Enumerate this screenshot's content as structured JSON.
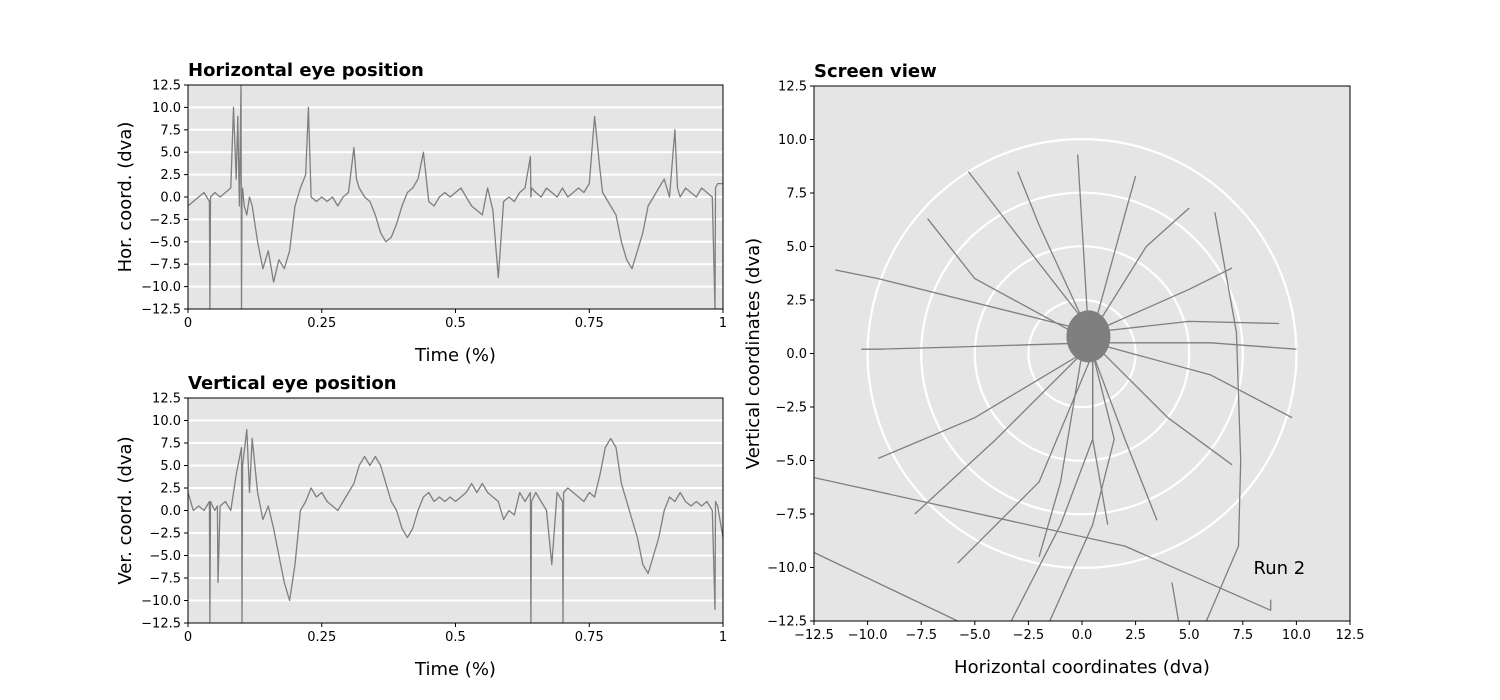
{
  "chart_data": [
    {
      "type": "line",
      "title": "Horizontal eye position",
      "xlabel": "Time (%)",
      "ylabel": "Hor. coord. (dva)",
      "xlim": [
        0,
        1
      ],
      "ylim": [
        -12.5,
        12.5
      ],
      "xticks": [
        "0",
        "0.25",
        "0.5",
        "0.75",
        "1"
      ],
      "yticks": [
        "12.5",
        "10.0",
        "7.5",
        "5.0",
        "2.5",
        "0.0",
        "−2.5",
        "−5.0",
        "−7.5",
        "−10.0",
        "−12.5"
      ],
      "grid": "horizontal",
      "color": "#7f7f7f",
      "background": "#e5e5e5",
      "series": [
        {
          "x": [
            0,
            0.01,
            0.02,
            0.03,
            0.035,
            0.04,
            0.041,
            0.042,
            0.05,
            0.06,
            0.07,
            0.08,
            0.085,
            0.09,
            0.093,
            0.096,
            0.099,
            0.1,
            0.101,
            0.102,
            0.105,
            0.11,
            0.115,
            0.12,
            0.13,
            0.14,
            0.15,
            0.16,
            0.17,
            0.18,
            0.19,
            0.2,
            0.21,
            0.22,
            0.225,
            0.23,
            0.24,
            0.25,
            0.26,
            0.27,
            0.28,
            0.29,
            0.3,
            0.31,
            0.315,
            0.32,
            0.33,
            0.34,
            0.35,
            0.36,
            0.37,
            0.38,
            0.39,
            0.4,
            0.41,
            0.42,
            0.43,
            0.44,
            0.45,
            0.46,
            0.47,
            0.48,
            0.49,
            0.5,
            0.51,
            0.52,
            0.53,
            0.54,
            0.55,
            0.56,
            0.57,
            0.58,
            0.59,
            0.6,
            0.61,
            0.62,
            0.63,
            0.64,
            0.641,
            0.642,
            0.65,
            0.66,
            0.67,
            0.68,
            0.69,
            0.7,
            0.71,
            0.72,
            0.73,
            0.74,
            0.75,
            0.76,
            0.77,
            0.775,
            0.78,
            0.79,
            0.8,
            0.81,
            0.82,
            0.83,
            0.84,
            0.85,
            0.86,
            0.87,
            0.88,
            0.89,
            0.9,
            0.91,
            0.915,
            0.92,
            0.93,
            0.94,
            0.95,
            0.96,
            0.97,
            0.98,
            0.985,
            0.986,
            0.99,
            1.0
          ],
          "y": [
            -1.0,
            -0.5,
            0.0,
            0.5,
            0.0,
            -0.5,
            -12.5,
            0.0,
            0.5,
            0.0,
            0.5,
            1.0,
            10.0,
            2.0,
            9.0,
            -1.0,
            12.5,
            -12.5,
            0.0,
            1.0,
            -1.0,
            -2.0,
            0.0,
            -1.0,
            -5.0,
            -8.0,
            -6.0,
            -9.5,
            -7.0,
            -8.0,
            -6.0,
            -1.0,
            1.0,
            2.5,
            10.0,
            0.0,
            -0.5,
            0.0,
            -0.5,
            0.0,
            -1.0,
            0.0,
            0.5,
            5.5,
            2.0,
            1.0,
            0.0,
            -0.5,
            -2.0,
            -4.0,
            -5.0,
            -4.5,
            -3.0,
            -1.0,
            0.5,
            1.0,
            2.0,
            5.0,
            -0.5,
            -1.0,
            0.0,
            0.5,
            0.0,
            0.5,
            1.0,
            0.0,
            -1.0,
            -1.5,
            -2.0,
            1.0,
            -1.5,
            -9.0,
            -0.5,
            0.0,
            -0.5,
            0.5,
            1.0,
            4.5,
            0.0,
            1.0,
            0.5,
            0.0,
            1.0,
            0.5,
            0.0,
            1.0,
            0.0,
            0.5,
            1.0,
            0.5,
            1.5,
            9.0,
            3.0,
            0.5,
            0.0,
            -1.0,
            -2.0,
            -5.0,
            -7.0,
            -8.0,
            -6.0,
            -4.0,
            -1.0,
            0.0,
            1.0,
            2.0,
            0.0,
            7.5,
            1.0,
            0.0,
            1.0,
            0.5,
            0.0,
            1.0,
            0.5,
            0.0,
            -12.5,
            1.0,
            1.5,
            1.5
          ]
        }
      ]
    },
    {
      "type": "line",
      "title": "Vertical eye position",
      "xlabel": "Time (%)",
      "ylabel": "Ver. coord. (dva)",
      "xlim": [
        0,
        1
      ],
      "ylim": [
        -12.5,
        12.5
      ],
      "xticks": [
        "0",
        "0.25",
        "0.5",
        "0.75",
        "1"
      ],
      "yticks": [
        "12.5",
        "10.0",
        "7.5",
        "5.0",
        "2.5",
        "0.0",
        "−2.5",
        "−5.0",
        "−7.5",
        "−10.0",
        "−12.5"
      ],
      "grid": "horizontal",
      "color": "#7f7f7f",
      "background": "#e5e5e5",
      "series": [
        {
          "x": [
            0,
            0.01,
            0.02,
            0.03,
            0.04,
            0.041,
            0.042,
            0.05,
            0.055,
            0.056,
            0.06,
            0.07,
            0.08,
            0.09,
            0.1,
            0.101,
            0.102,
            0.11,
            0.115,
            0.12,
            0.13,
            0.14,
            0.15,
            0.16,
            0.17,
            0.18,
            0.19,
            0.2,
            0.21,
            0.22,
            0.23,
            0.24,
            0.25,
            0.26,
            0.27,
            0.28,
            0.29,
            0.3,
            0.31,
            0.32,
            0.33,
            0.34,
            0.35,
            0.36,
            0.37,
            0.38,
            0.39,
            0.4,
            0.41,
            0.42,
            0.43,
            0.44,
            0.45,
            0.46,
            0.47,
            0.48,
            0.49,
            0.5,
            0.51,
            0.52,
            0.53,
            0.54,
            0.55,
            0.56,
            0.57,
            0.58,
            0.59,
            0.6,
            0.61,
            0.62,
            0.63,
            0.64,
            0.641,
            0.642,
            0.65,
            0.66,
            0.67,
            0.68,
            0.69,
            0.7,
            0.701,
            0.702,
            0.71,
            0.72,
            0.73,
            0.74,
            0.75,
            0.76,
            0.77,
            0.78,
            0.79,
            0.8,
            0.81,
            0.82,
            0.83,
            0.84,
            0.85,
            0.86,
            0.87,
            0.88,
            0.89,
            0.9,
            0.91,
            0.92,
            0.93,
            0.94,
            0.95,
            0.96,
            0.97,
            0.98,
            0.985,
            0.986,
            0.99,
            1.0
          ],
          "y": [
            2.0,
            0.0,
            0.5,
            0.0,
            1.0,
            -12.5,
            1.0,
            0.0,
            0.5,
            -8.0,
            0.5,
            1.0,
            0.0,
            4.0,
            7.0,
            -12.5,
            5.0,
            9.0,
            2.0,
            8.0,
            2.0,
            -1.0,
            0.5,
            -2.0,
            -5.0,
            -8.0,
            -10.0,
            -6.0,
            0.0,
            1.0,
            2.5,
            1.5,
            2.0,
            1.0,
            0.5,
            0.0,
            1.0,
            2.0,
            3.0,
            5.0,
            6.0,
            5.0,
            6.0,
            5.0,
            3.0,
            1.0,
            0.0,
            -2.0,
            -3.0,
            -2.0,
            0.0,
            1.5,
            2.0,
            1.0,
            1.5,
            1.0,
            1.5,
            1.0,
            1.5,
            2.0,
            3.0,
            2.0,
            3.0,
            2.0,
            1.5,
            1.0,
            -1.0,
            0.0,
            -0.5,
            2.0,
            1.0,
            2.0,
            -12.5,
            1.0,
            2.0,
            1.0,
            0.0,
            -6.0,
            2.0,
            1.0,
            -12.5,
            2.0,
            2.5,
            2.0,
            1.5,
            1.0,
            2.0,
            1.5,
            4.0,
            7.0,
            8.0,
            7.0,
            3.0,
            1.0,
            -1.0,
            -3.0,
            -6.0,
            -7.0,
            -5.0,
            -3.0,
            0.0,
            1.5,
            1.0,
            2.0,
            1.0,
            0.5,
            1.0,
            0.5,
            1.0,
            0.0,
            -11.0,
            1.0,
            0.5,
            -3.0
          ]
        }
      ]
    },
    {
      "type": "line",
      "title": "Screen view",
      "xlabel": "Horizontal coordinates (dva)",
      "ylabel": "Vertical coordinates (dva)",
      "xlim": [
        -12.5,
        12.5
      ],
      "ylim": [
        -12.5,
        12.5
      ],
      "xticks": [
        "−12.5",
        "−10.0",
        "−7.5",
        "−5.0",
        "−2.5",
        "0.0",
        "2.5",
        "5.0",
        "7.5",
        "10.0",
        "12.5"
      ],
      "yticks": [
        "12.5",
        "10.0",
        "7.5",
        "5.0",
        "2.5",
        "0.0",
        "−2.5",
        "−5.0",
        "−7.5",
        "−10.0",
        "−12.5"
      ],
      "reference_circles_radius": [
        2.5,
        5.0,
        7.5,
        10.0
      ],
      "annotation": "Run 2",
      "color": "#7f7f7f",
      "background": "#e5e5e5",
      "trajectories": [
        {
          "points": [
            [
              0.5,
              1.0
            ],
            [
              -9.5,
              3.5
            ],
            [
              -11.5,
              3.9
            ]
          ]
        },
        {
          "points": [
            [
              0.5,
              0.5
            ],
            [
              -6.0,
              0.3
            ],
            [
              -9.5,
              0.2
            ],
            [
              -10.3,
              0.2
            ]
          ]
        },
        {
          "points": [
            [
              0.0,
              0.0
            ],
            [
              -5.0,
              -3.0
            ],
            [
              -9.5,
              -4.9
            ]
          ]
        },
        {
          "points": [
            [
              0.0,
              0.0
            ],
            [
              -4.0,
              -4.0
            ],
            [
              -7.8,
              -7.5
            ]
          ]
        },
        {
          "points": [
            [
              0.5,
              0.0
            ],
            [
              -2.0,
              -6.0
            ],
            [
              -5.8,
              -9.8
            ]
          ]
        },
        {
          "points": [
            [
              0.5,
              0.5
            ],
            [
              -5.0,
              3.5
            ],
            [
              -7.2,
              6.3
            ]
          ]
        },
        {
          "points": [
            [
              0.5,
              1.0
            ],
            [
              -3.0,
              5.5
            ],
            [
              -5.3,
              8.5
            ]
          ]
        },
        {
          "points": [
            [
              0.3,
              1.0
            ],
            [
              -2.0,
              6.0
            ],
            [
              -3.0,
              8.5
            ]
          ]
        },
        {
          "points": [
            [
              0.3,
              1.0
            ],
            [
              0.0,
              6.0
            ],
            [
              -0.2,
              9.3
            ]
          ]
        },
        {
          "points": [
            [
              0.5,
              1.0
            ],
            [
              2.0,
              6.5
            ],
            [
              2.5,
              8.3
            ]
          ]
        },
        {
          "points": [
            [
              0.5,
              1.0
            ],
            [
              3.0,
              5.0
            ],
            [
              5.0,
              6.8
            ]
          ]
        },
        {
          "points": [
            [
              0.5,
              1.0
            ],
            [
              5.0,
              3.0
            ],
            [
              7.0,
              4.0
            ]
          ]
        },
        {
          "points": [
            [
              0.5,
              1.0
            ],
            [
              5.0,
              1.5
            ],
            [
              9.2,
              1.4
            ]
          ]
        },
        {
          "points": [
            [
              0.5,
              0.5
            ],
            [
              6.0,
              0.5
            ],
            [
              10.0,
              0.2
            ]
          ]
        },
        {
          "points": [
            [
              0.5,
              0.5
            ],
            [
              6.0,
              -1.0
            ],
            [
              9.8,
              -3.0
            ]
          ]
        },
        {
          "points": [
            [
              0.5,
              0.5
            ],
            [
              4.0,
              -3.0
            ],
            [
              7.0,
              -5.2
            ]
          ]
        },
        {
          "points": [
            [
              0.5,
              0.0
            ],
            [
              2.0,
              -4.0
            ],
            [
              3.5,
              -7.8
            ]
          ]
        },
        {
          "points": [
            [
              0.5,
              0.0
            ],
            [
              0.5,
              -4.0
            ],
            [
              1.2,
              -8.0
            ]
          ]
        },
        {
          "points": [
            [
              0.0,
              0.0
            ],
            [
              -1.0,
              -6.0
            ],
            [
              -2.0,
              -9.5
            ]
          ]
        },
        {
          "points": [
            [
              0.5,
              0.0
            ],
            [
              0.5,
              -4.0
            ],
            [
              -1.0,
              -8.0
            ],
            [
              -3.3,
              -12.5
            ]
          ]
        },
        {
          "points": [
            [
              0.5,
              0.0
            ],
            [
              1.5,
              -4.0
            ],
            [
              0.5,
              -8.0
            ],
            [
              -1.5,
              -12.5
            ]
          ]
        },
        {
          "points": [
            [
              6.2,
              6.6
            ],
            [
              7.2,
              1.0
            ],
            [
              7.4,
              -5.0
            ],
            [
              7.3,
              -9.0
            ],
            [
              5.8,
              -12.5
            ]
          ]
        },
        {
          "points": [
            [
              -12.5,
              -5.8
            ],
            [
              2.0,
              -9.0
            ],
            [
              8.8,
              -12.0
            ],
            [
              8.8,
              -11.5
            ]
          ]
        },
        {
          "points": [
            [
              -12.5,
              -9.3
            ],
            [
              -5.8,
              -12.5
            ]
          ]
        },
        {
          "points": [
            [
              4.2,
              -10.7
            ],
            [
              4.5,
              -12.5
            ]
          ]
        }
      ]
    }
  ]
}
